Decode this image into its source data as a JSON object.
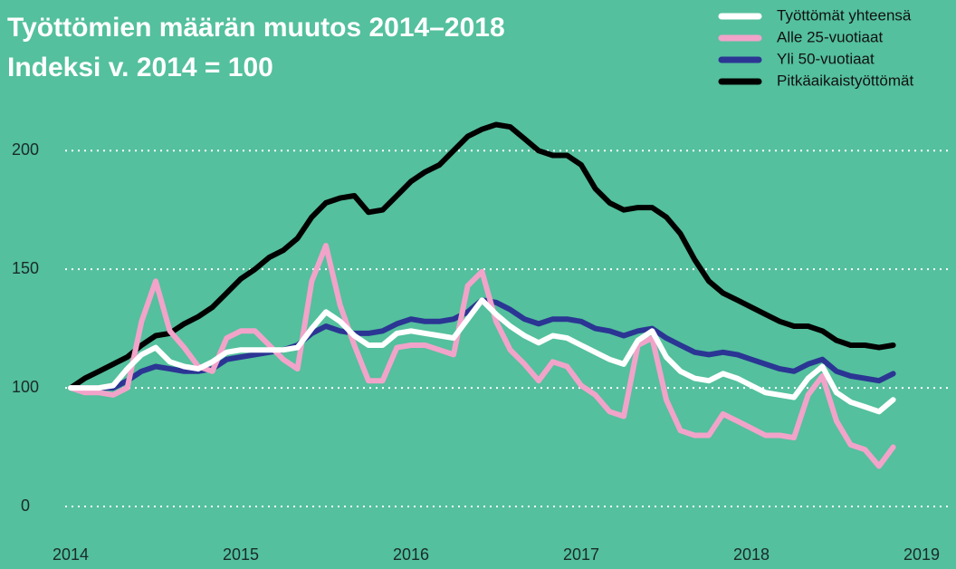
{
  "chart_data": {
    "type": "line",
    "title": "Työttömien määrän muutos 2014–2018",
    "subtitle": "Indeksi v. 2014 = 100",
    "x": [
      2014,
      2014.083,
      2014.167,
      2014.25,
      2014.333,
      2014.417,
      2014.5,
      2014.583,
      2014.667,
      2014.75,
      2014.833,
      2014.917,
      2015,
      2015.083,
      2015.167,
      2015.25,
      2015.333,
      2015.417,
      2015.5,
      2015.583,
      2015.667,
      2015.75,
      2015.833,
      2015.917,
      2016,
      2016.083,
      2016.167,
      2016.25,
      2016.333,
      2016.417,
      2016.5,
      2016.583,
      2016.667,
      2016.75,
      2016.833,
      2016.917,
      2017,
      2017.083,
      2017.167,
      2017.25,
      2017.333,
      2017.417,
      2017.5,
      2017.583,
      2017.667,
      2017.75,
      2017.833,
      2017.917,
      2018,
      2018.083,
      2018.167,
      2018.25,
      2018.333,
      2018.417,
      2018.5,
      2018.583,
      2018.667,
      2018.75,
      2018.833
    ],
    "series": [
      {
        "name": "Pitkäaikaistyöttömät",
        "color": "#000000",
        "values": [
          100,
          104,
          107,
          110,
          113,
          118,
          122,
          123,
          127,
          130,
          134,
          140,
          146,
          150,
          155,
          158,
          163,
          172,
          178,
          180,
          181,
          174,
          175,
          181,
          187,
          191,
          194,
          200,
          206,
          209,
          211,
          210,
          205,
          200,
          198,
          198,
          194,
          184,
          178,
          175,
          176,
          176,
          172,
          165,
          154,
          145,
          140,
          137,
          134,
          131,
          128,
          126,
          126,
          124,
          120,
          118,
          118,
          117,
          118
        ]
      },
      {
        "name": "Yli 50-vuotiaat",
        "color": "#2b3593",
        "values": [
          100,
          100,
          100,
          100,
          103,
          107,
          109,
          108,
          107,
          107,
          108,
          112,
          113,
          114,
          115,
          116,
          118,
          123,
          126,
          124,
          123,
          123,
          124,
          127,
          129,
          128,
          128,
          129,
          132,
          137,
          136,
          133,
          129,
          127,
          129,
          129,
          128,
          125,
          124,
          122,
          124,
          125,
          121,
          118,
          115,
          114,
          115,
          114,
          112,
          110,
          108,
          107,
          110,
          112,
          107,
          105,
          104,
          103,
          106
        ]
      },
      {
        "name": "Alle 25-vuotiaat",
        "color": "#f2a3c9",
        "values": [
          100,
          98,
          98,
          97,
          100,
          128,
          145,
          124,
          117,
          109,
          107,
          121,
          124,
          124,
          118,
          112,
          108,
          145,
          160,
          135,
          118,
          103,
          103,
          117,
          118,
          118,
          116,
          114,
          143,
          149,
          128,
          116,
          110,
          103,
          111,
          109,
          101,
          97,
          90,
          88,
          118,
          121,
          95,
          82,
          80,
          80,
          89,
          86,
          83,
          80,
          80,
          79,
          97,
          105,
          86,
          76,
          74,
          67,
          75
        ]
      },
      {
        "name": "Työttömät yhteensä",
        "color": "#ffffff",
        "values": [
          100,
          100,
          100,
          101,
          108,
          114,
          117,
          111,
          109,
          108,
          111,
          115,
          116,
          116,
          116,
          116,
          117,
          125,
          132,
          128,
          122,
          118,
          118,
          123,
          124,
          123,
          122,
          121,
          129,
          137,
          131,
          126,
          122,
          119,
          122,
          121,
          118,
          115,
          112,
          110,
          120,
          124,
          113,
          107,
          104,
          103,
          106,
          104,
          101,
          98,
          97,
          96,
          104,
          109,
          98,
          94,
          92,
          90,
          95
        ]
      }
    ],
    "legend_order": [
      "Työttömät yhteensä",
      "Alle 25-vuotiaat",
      "Yli 50-vuotiaat",
      "Pitkäaikaistyöttömät"
    ],
    "xlim": [
      2014,
      2019
    ],
    "xticks": [
      2014,
      2015,
      2016,
      2017,
      2018,
      2019
    ],
    "ylim": [
      0,
      215
    ],
    "yticks": [
      0,
      100,
      150,
      200
    ],
    "ybreak": [
      0,
      50
    ],
    "grid": true,
    "legend": "top-right",
    "background": "#54c09d"
  }
}
